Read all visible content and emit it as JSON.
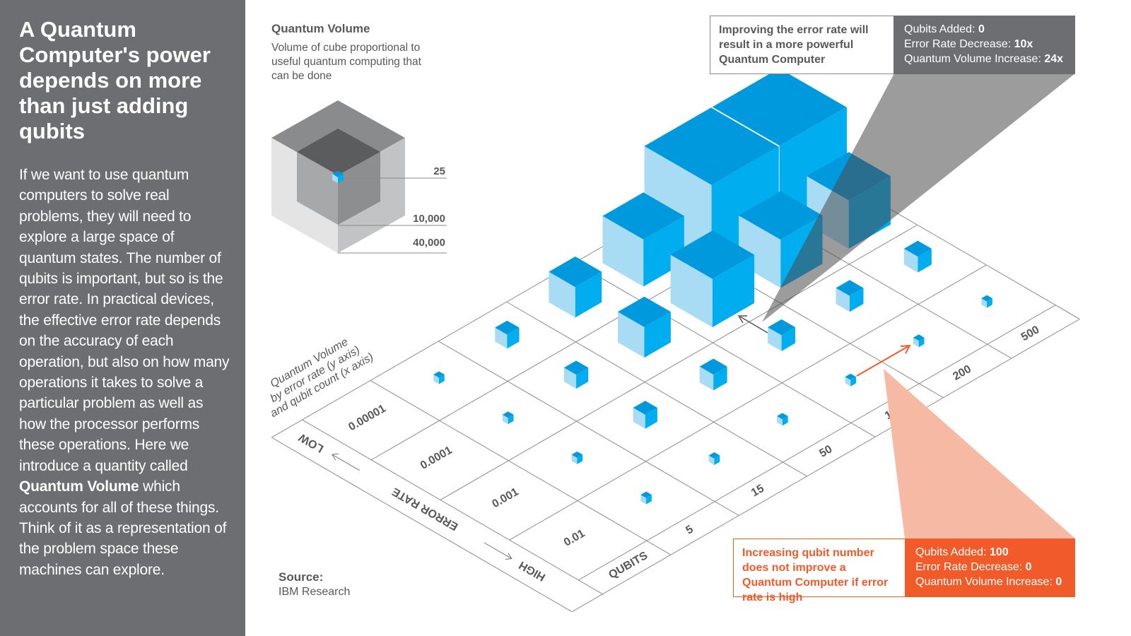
{
  "sidebar": {
    "title": "A Quantum Computer's power depends on more than just adding qubits",
    "body_before": "If we want to use quantum computers to solve real problems, they will need to explore a large space of quantum states. The number of qubits is important, but so is the error rate. In practical devices, the effective error rate depends on the accuracy of each operation, but also on how many operations it takes to solve a particular problem as well as how the processor performs these operations. Here we introduce a quantity called ",
    "body_bold": "Quantum Volume",
    "body_after": " which accounts for all of these things. Think of it as a representation of the problem space these machines can explore."
  },
  "legend": {
    "heading": "Quantum Volume",
    "description": "Volume of cube proportional to useful quantum computing that can be done",
    "values": [
      "25",
      "10,000",
      "40,000"
    ]
  },
  "grid": {
    "caption_lines": [
      "Quantum Volume",
      "by error rate (y axis)",
      "and qubit count (x axis)"
    ],
    "error_axis": {
      "label": "ERROR RATE",
      "low": "LOW",
      "high": "HIGH"
    },
    "error_rates": [
      "0.00001",
      "0.0001",
      "0.001",
      "0.01"
    ],
    "qubit_axis_label": "QUBITS",
    "qubit_counts": [
      "5",
      "15",
      "50",
      "100",
      "200",
      "500"
    ],
    "cube_relative_size": [
      [
        1,
        2.2,
        4.8,
        7.4,
        12.2,
        12.2
      ],
      [
        1,
        2.2,
        4.8,
        7.6,
        7.6,
        7.6
      ],
      [
        1,
        2.2,
        2.5,
        2.5,
        2.5,
        2.5
      ],
      [
        1,
        1,
        1,
        1,
        1,
        1
      ]
    ]
  },
  "callout_error": {
    "text": "Improving the error rate will result in a more powerful Quantum Computer",
    "stats": [
      {
        "label": "Qubits Added: ",
        "value": "0"
      },
      {
        "label": "Error Rate Decrease: ",
        "value": "10x"
      },
      {
        "label": "Quantum Volume Increase: ",
        "value": "24x"
      }
    ]
  },
  "callout_qubits": {
    "text": "Increasing qubit number does not improve a Quantum Computer if error rate is high",
    "stats": [
      {
        "label": "Qubits Added: ",
        "value": "100"
      },
      {
        "label": "Error Rate Decrease: ",
        "value": "0"
      },
      {
        "label": "Quantum Volume Increase: ",
        "value": "0"
      }
    ]
  },
  "source": {
    "label": "Source:",
    "name": "IBM Research"
  },
  "colors": {
    "panel": "#6d6e71",
    "cube_top": "#0099dd",
    "cube_left": "#a8dcf5",
    "cube_right": "#00aeef",
    "accent_orange": "#f15a29",
    "orange_wedge": "#f6b9a3"
  }
}
